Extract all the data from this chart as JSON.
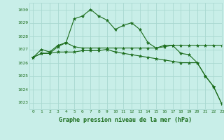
{
  "title": "Graphe pression niveau de la mer (hPa)",
  "background_color": "#c8eee8",
  "grid_color": "#a8d8d0",
  "line_color": "#1a6b1a",
  "xlim": [
    -0.5,
    23
  ],
  "ylim": [
    1022.5,
    1030.5
  ],
  "yticks": [
    1023,
    1024,
    1025,
    1026,
    1027,
    1028,
    1029,
    1030
  ],
  "xticks": [
    0,
    1,
    2,
    3,
    4,
    5,
    6,
    7,
    8,
    9,
    10,
    11,
    12,
    13,
    14,
    15,
    16,
    17,
    18,
    19,
    20,
    21,
    22,
    23
  ],
  "series": [
    [
      1026.4,
      1027.0,
      1026.8,
      1027.3,
      1027.5,
      1029.3,
      1029.5,
      1030.0,
      1029.5,
      1029.2,
      1028.5,
      1028.8,
      1029.0,
      1028.5,
      1027.5,
      1027.1,
      1027.3,
      1027.3,
      1026.7,
      1026.6,
      1026.0,
      1025.0,
      1024.2,
      1022.9
    ],
    [
      1026.4,
      1026.7,
      1026.7,
      1027.2,
      1027.5,
      1027.2,
      1027.1,
      1027.1,
      1027.1,
      1027.1,
      1027.1,
      1027.1,
      1027.1,
      1027.1,
      1027.1,
      1027.1,
      1027.2,
      1027.3,
      1027.3,
      1027.3,
      1027.3,
      1027.3,
      1027.3,
      1027.3
    ],
    [
      1026.4,
      1026.7,
      1026.7,
      1026.8,
      1026.8,
      1026.8,
      1026.9,
      1026.9,
      1026.9,
      1027.0,
      1026.8,
      1026.7,
      1026.6,
      1026.5,
      1026.4,
      1026.3,
      1026.2,
      1026.1,
      1026.0,
      1026.0,
      1026.0,
      1025.0,
      1024.2,
      1022.9
    ]
  ],
  "figsize": [
    3.2,
    2.0
  ],
  "dpi": 100
}
